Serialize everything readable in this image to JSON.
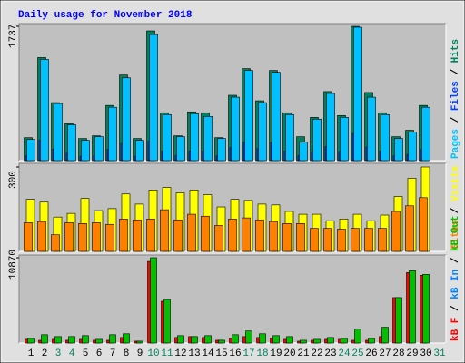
{
  "legend_separator": " / ",
  "chart_data": [
    {
      "type": "bar",
      "title": "Daily usage for November 2018",
      "ylim": [
        0,
        1737
      ],
      "yticks": [
        1737
      ],
      "series": [
        {
          "name": "Pages",
          "color": "#00C0FF",
          "values": [
            274,
            1309,
            738,
            464,
            262,
            309,
            690,
            1071,
            262,
            1630,
            595,
            309,
            607,
            571,
            286,
            821,
            1166,
            750,
            1142,
            595,
            238,
            536,
            869,
            559,
            1725,
            821,
            595,
            286,
            369,
            690,
            0
          ]
        },
        {
          "name": "Files",
          "color": "#0040FF",
          "values": [
            60,
            266,
            150,
            95,
            57,
            64,
            143,
            221,
            57,
            250,
            124,
            64,
            126,
            124,
            59,
            169,
            238,
            155,
            233,
            124,
            62,
            112,
            179,
            117,
            347,
            176,
            124,
            62,
            79,
            143,
            0
          ]
        },
        {
          "name": "Hits",
          "color": "#00805C",
          "values": [
            297,
            1333,
            750,
            476,
            286,
            321,
            714,
            1107,
            286,
            1678,
            619,
            321,
            631,
            619,
            297,
            845,
            1190,
            774,
            1166,
            619,
            309,
            559,
            893,
            583,
            1737,
            881,
            619,
            309,
            393,
            714,
            0
          ]
        }
      ]
    },
    {
      "type": "bar",
      "ylim": [
        0,
        300
      ],
      "yticks": [
        300
      ],
      "series": [
        {
          "name": "Sites",
          "color": "#FF8000",
          "values": [
            102,
            106,
            59,
            102,
            99,
            102,
            96,
            115,
            112,
            115,
            148,
            112,
            132,
            125,
            92,
            115,
            119,
            112,
            106,
            99,
            99,
            82,
            82,
            79,
            82,
            82,
            82,
            142,
            162,
            191,
            0
          ]
        },
        {
          "name": "Visits",
          "color": "#FFFF00",
          "values": [
            185,
            175,
            122,
            135,
            188,
            145,
            152,
            204,
            168,
            218,
            227,
            208,
            218,
            201,
            158,
            185,
            181,
            168,
            165,
            142,
            132,
            132,
            109,
            115,
            132,
            109,
            129,
            195,
            260,
            300,
            0
          ]
        }
      ]
    },
    {
      "type": "bar",
      "ylim": [
        0,
        10870
      ],
      "yticks": [
        10870
      ],
      "categories": [
        "1",
        "2",
        "3",
        "4",
        "5",
        "6",
        "7",
        "8",
        "9",
        "10",
        "11",
        "12",
        "13",
        "14",
        "15",
        "16",
        "17",
        "18",
        "19",
        "20",
        "21",
        "22",
        "23",
        "24",
        "25",
        "26",
        "27",
        "28",
        "29",
        "30",
        "31"
      ],
      "category_colors": [
        "#000000",
        "#000000",
        "#00805C",
        "#00805C",
        "#000000",
        "#000000",
        "#000000",
        "#000000",
        "#000000",
        "#00805C",
        "#00805C",
        "#000000",
        "#000000",
        "#000000",
        "#000000",
        "#000000",
        "#00805C",
        "#00805C",
        "#000000",
        "#000000",
        "#000000",
        "#000000",
        "#000000",
        "#00805C",
        "#00805C",
        "#000000",
        "#000000",
        "#000000",
        "#000000",
        "#000000",
        "#00805C"
      ],
      "series": [
        {
          "name": "kB F",
          "color": "#FF0000",
          "values": [
            470,
            350,
            470,
            354,
            470,
            354,
            354,
            708,
            236,
            10400,
            5320,
            708,
            826,
            708,
            354,
            590,
            826,
            708,
            590,
            470,
            236,
            354,
            470,
            470,
            354,
            354,
            826,
            5790,
            8980,
            8630,
            0
          ]
        },
        {
          "name": "kB In",
          "color": "#0080FF",
          "values": [
            0,
            0,
            0,
            0,
            0,
            0,
            0,
            0,
            0,
            0,
            0,
            0,
            0,
            0,
            0,
            0,
            0,
            0,
            0,
            0,
            0,
            0,
            0,
            0,
            0,
            0,
            0,
            0,
            0,
            0,
            0
          ]
        },
        {
          "name": "kB Out",
          "color": "#00C000",
          "values": [
            590,
            1060,
            826,
            826,
            944,
            470,
            1060,
            1180,
            236,
            10870,
            5550,
            944,
            826,
            944,
            354,
            1060,
            1536,
            1180,
            944,
            826,
            354,
            470,
            708,
            590,
            1770,
            590,
            2010,
            5790,
            9220,
            8750,
            0
          ]
        }
      ]
    }
  ]
}
